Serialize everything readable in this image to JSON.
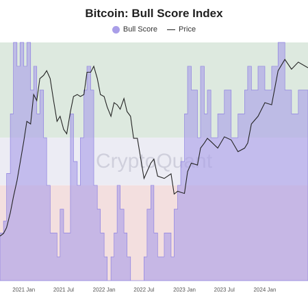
{
  "chart_data": {
    "type": "area",
    "title": "Bitcoin: Bull Score Index",
    "watermark": "CryptoQuant",
    "legend": [
      {
        "label": "Bull Score",
        "color": "#a99ee8",
        "shape": "dot"
      },
      {
        "label": "Price",
        "color": "#222222",
        "shape": "line"
      }
    ],
    "x_tick_labels": [
      "2021 Jan",
      "2021 Jul",
      "2022 Jan",
      "2022 Jul",
      "2023 Jan",
      "2023 Jul",
      "2024 Jan"
    ],
    "x_range": [
      "2020-09-15",
      "2024-07-15"
    ],
    "bull_score_range": [
      0,
      100
    ],
    "zones": [
      {
        "from": 60,
        "to": 100,
        "color": "#dde9df"
      },
      {
        "from": 40,
        "to": 60,
        "color": "#ececf4"
      },
      {
        "from": 0,
        "to": 40,
        "color": "#f3dfdf"
      }
    ],
    "bull_score_color": "#a99ee8",
    "price_color": "#222222",
    "series": [
      {
        "name": "Bull Score",
        "points": [
          [
            "2020-09-15",
            20
          ],
          [
            "2020-10-01",
            25
          ],
          [
            "2020-10-15",
            45
          ],
          [
            "2020-11-01",
            70
          ],
          [
            "2020-11-15",
            100
          ],
          [
            "2020-12-01",
            90
          ],
          [
            "2020-12-15",
            100
          ],
          [
            "2021-01-01",
            90
          ],
          [
            "2021-01-15",
            100
          ],
          [
            "2021-02-01",
            80
          ],
          [
            "2021-02-15",
            90
          ],
          [
            "2021-03-01",
            70
          ],
          [
            "2021-03-15",
            80
          ],
          [
            "2021-04-01",
            60
          ],
          [
            "2021-04-15",
            40
          ],
          [
            "2021-05-01",
            20
          ],
          [
            "2021-05-15",
            20
          ],
          [
            "2021-06-01",
            10
          ],
          [
            "2021-06-15",
            30
          ],
          [
            "2021-07-01",
            20
          ],
          [
            "2021-07-15",
            20
          ],
          [
            "2021-08-01",
            70
          ],
          [
            "2021-08-15",
            50
          ],
          [
            "2021-09-01",
            40
          ],
          [
            "2021-09-15",
            60
          ],
          [
            "2021-10-01",
            80
          ],
          [
            "2021-10-15",
            90
          ],
          [
            "2021-11-01",
            80
          ],
          [
            "2021-11-15",
            40
          ],
          [
            "2021-12-01",
            30
          ],
          [
            "2021-12-15",
            20
          ],
          [
            "2022-01-01",
            10
          ],
          [
            "2022-01-15",
            0
          ],
          [
            "2022-02-01",
            10
          ],
          [
            "2022-02-15",
            20
          ],
          [
            "2022-03-01",
            40
          ],
          [
            "2022-03-15",
            30
          ],
          [
            "2022-04-01",
            20
          ],
          [
            "2022-04-15",
            10
          ],
          [
            "2022-05-01",
            0
          ],
          [
            "2022-05-15",
            0
          ],
          [
            "2022-06-01",
            0
          ],
          [
            "2022-07-01",
            10
          ],
          [
            "2022-07-15",
            30
          ],
          [
            "2022-08-01",
            40
          ],
          [
            "2022-08-15",
            20
          ],
          [
            "2022-09-01",
            10
          ],
          [
            "2022-10-01",
            20
          ],
          [
            "2022-11-01",
            10
          ],
          [
            "2022-11-15",
            30
          ],
          [
            "2022-12-01",
            40
          ],
          [
            "2022-12-15",
            50
          ],
          [
            "2023-01-01",
            70
          ],
          [
            "2023-01-15",
            90
          ],
          [
            "2023-02-01",
            80
          ],
          [
            "2023-03-01",
            60
          ],
          [
            "2023-03-15",
            90
          ],
          [
            "2023-04-01",
            70
          ],
          [
            "2023-04-15",
            80
          ],
          [
            "2023-05-01",
            60
          ],
          [
            "2023-06-01",
            70
          ],
          [
            "2023-07-01",
            80
          ],
          [
            "2023-08-01",
            60
          ],
          [
            "2023-09-01",
            70
          ],
          [
            "2023-10-01",
            80
          ],
          [
            "2023-10-15",
            90
          ],
          [
            "2023-11-01",
            80
          ],
          [
            "2023-12-01",
            90
          ],
          [
            "2024-01-01",
            80
          ],
          [
            "2024-02-01",
            90
          ],
          [
            "2024-03-01",
            100
          ],
          [
            "2024-04-01",
            80
          ],
          [
            "2024-05-01",
            70
          ],
          [
            "2024-06-01",
            80
          ],
          [
            "2024-07-15",
            70
          ]
        ]
      },
      {
        "name": "Price",
        "points": [
          [
            "2020-09-15",
            10500
          ],
          [
            "2020-10-01",
            10800
          ],
          [
            "2020-10-15",
            11500
          ],
          [
            "2020-11-01",
            13500
          ],
          [
            "2020-11-15",
            16000
          ],
          [
            "2020-12-01",
            19000
          ],
          [
            "2020-12-15",
            23000
          ],
          [
            "2021-01-01",
            29000
          ],
          [
            "2021-01-15",
            36000
          ],
          [
            "2021-02-01",
            35000
          ],
          [
            "2021-02-15",
            48000
          ],
          [
            "2021-03-01",
            45000
          ],
          [
            "2021-03-15",
            57000
          ],
          [
            "2021-04-01",
            59000
          ],
          [
            "2021-04-15",
            62000
          ],
          [
            "2021-05-01",
            57000
          ],
          [
            "2021-05-15",
            46000
          ],
          [
            "2021-06-01",
            36000
          ],
          [
            "2021-06-15",
            38000
          ],
          [
            "2021-07-01",
            33000
          ],
          [
            "2021-07-15",
            31500
          ],
          [
            "2021-08-01",
            40000
          ],
          [
            "2021-08-15",
            47000
          ],
          [
            "2021-09-01",
            48000
          ],
          [
            "2021-09-15",
            47000
          ],
          [
            "2021-10-01",
            48000
          ],
          [
            "2021-10-15",
            61000
          ],
          [
            "2021-11-01",
            61000
          ],
          [
            "2021-11-15",
            65000
          ],
          [
            "2021-12-01",
            57000
          ],
          [
            "2021-12-15",
            48000
          ],
          [
            "2022-01-01",
            47000
          ],
          [
            "2022-01-15",
            42000
          ],
          [
            "2022-02-01",
            38000
          ],
          [
            "2022-02-15",
            44000
          ],
          [
            "2022-03-01",
            43000
          ],
          [
            "2022-03-15",
            41000
          ],
          [
            "2022-04-01",
            46000
          ],
          [
            "2022-04-15",
            40000
          ],
          [
            "2022-05-01",
            38000
          ],
          [
            "2022-05-15",
            30000
          ],
          [
            "2022-06-01",
            30000
          ],
          [
            "2022-07-01",
            19500
          ],
          [
            "2022-07-15",
            21000
          ],
          [
            "2022-08-01",
            23000
          ],
          [
            "2022-08-15",
            24000
          ],
          [
            "2022-09-01",
            20000
          ],
          [
            "2022-10-01",
            19500
          ],
          [
            "2022-11-01",
            20500
          ],
          [
            "2022-11-15",
            16500
          ],
          [
            "2022-12-01",
            17000
          ],
          [
            "2022-12-15",
            16800
          ],
          [
            "2023-01-01",
            16600
          ],
          [
            "2023-01-15",
            21000
          ],
          [
            "2023-02-01",
            23000
          ],
          [
            "2023-03-01",
            22500
          ],
          [
            "2023-03-15",
            27000
          ],
          [
            "2023-04-01",
            28500
          ],
          [
            "2023-04-15",
            30000
          ],
          [
            "2023-05-01",
            29000
          ],
          [
            "2023-06-01",
            27000
          ],
          [
            "2023-07-01",
            30500
          ],
          [
            "2023-08-01",
            29500
          ],
          [
            "2023-09-01",
            26000
          ],
          [
            "2023-10-01",
            27000
          ],
          [
            "2023-10-15",
            28500
          ],
          [
            "2023-11-01",
            35000
          ],
          [
            "2023-12-01",
            38000
          ],
          [
            "2024-01-01",
            44000
          ],
          [
            "2024-02-01",
            43000
          ],
          [
            "2024-03-01",
            62000
          ],
          [
            "2024-04-01",
            70000
          ],
          [
            "2024-05-01",
            63000
          ],
          [
            "2024-06-01",
            68000
          ],
          [
            "2024-07-15",
            64000
          ]
        ]
      }
    ]
  }
}
